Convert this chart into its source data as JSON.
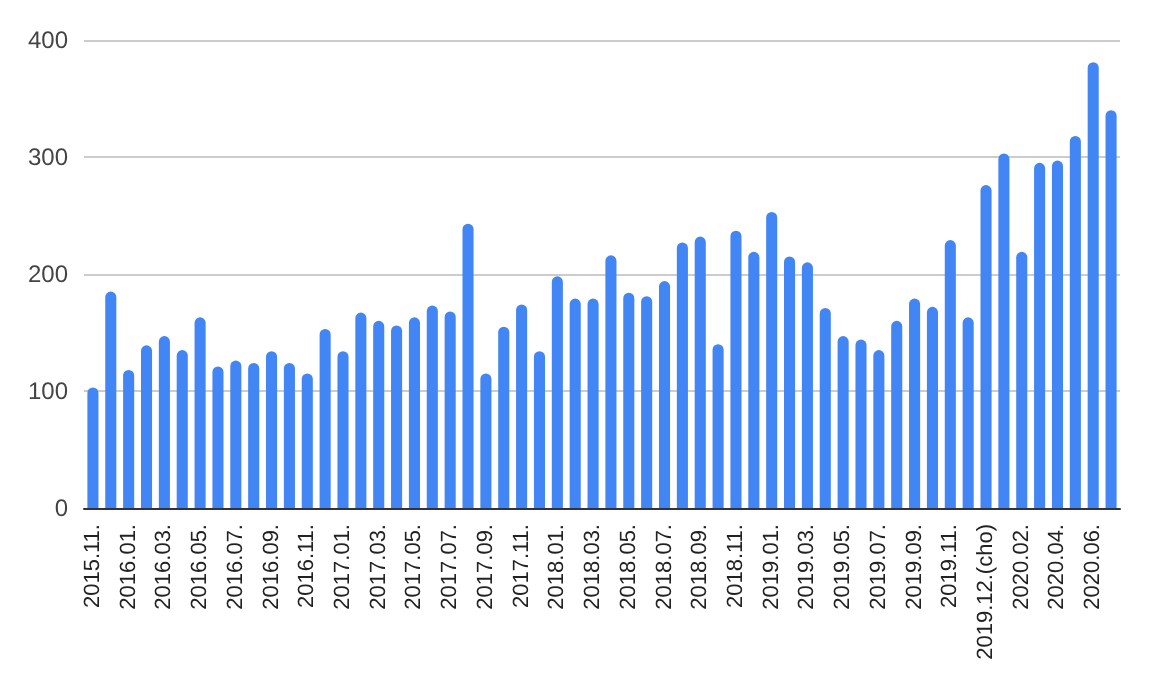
{
  "chart_data": {
    "type": "bar",
    "categories": [
      "2015.11.",
      null,
      "2016.01.",
      null,
      "2016.03.",
      null,
      "2016.05.",
      null,
      "2016.07.",
      null,
      "2016.09.",
      null,
      "2016.11.",
      null,
      "2017.01.",
      null,
      "2017.03.",
      null,
      "2017.05.",
      null,
      "2017.07.",
      null,
      "2017.09.",
      null,
      "2017.11.",
      null,
      "2018.01.",
      null,
      "2018.03.",
      null,
      "2018.05.",
      null,
      "2018.07.",
      null,
      "2018.09.",
      null,
      "2018.11.",
      null,
      "2019.01.",
      null,
      "2019.03.",
      null,
      "2019.05.",
      null,
      "2019.07.",
      null,
      "2019.09.",
      null,
      "2019.11.",
      null,
      "2019.12.(cho)",
      null,
      "2020.02.",
      null,
      "2020.04.",
      null,
      "2020.06.",
      null
    ],
    "values": [
      103,
      185,
      118,
      139,
      147,
      135,
      163,
      121,
      126,
      124,
      134,
      124,
      115,
      153,
      134,
      167,
      160,
      156,
      163,
      173,
      168,
      243,
      115,
      155,
      174,
      134,
      198,
      179,
      179,
      216,
      184,
      181,
      194,
      227,
      232,
      140,
      237,
      219,
      253,
      215,
      210,
      171,
      147,
      144,
      135,
      160,
      179,
      172,
      229,
      163,
      276,
      303,
      219,
      295,
      297,
      318,
      381,
      340
    ],
    "color": "#4285f4",
    "ylim": [
      0,
      400
    ],
    "yticks": [
      0,
      100,
      200,
      300,
      400
    ],
    "grid": "y"
  }
}
